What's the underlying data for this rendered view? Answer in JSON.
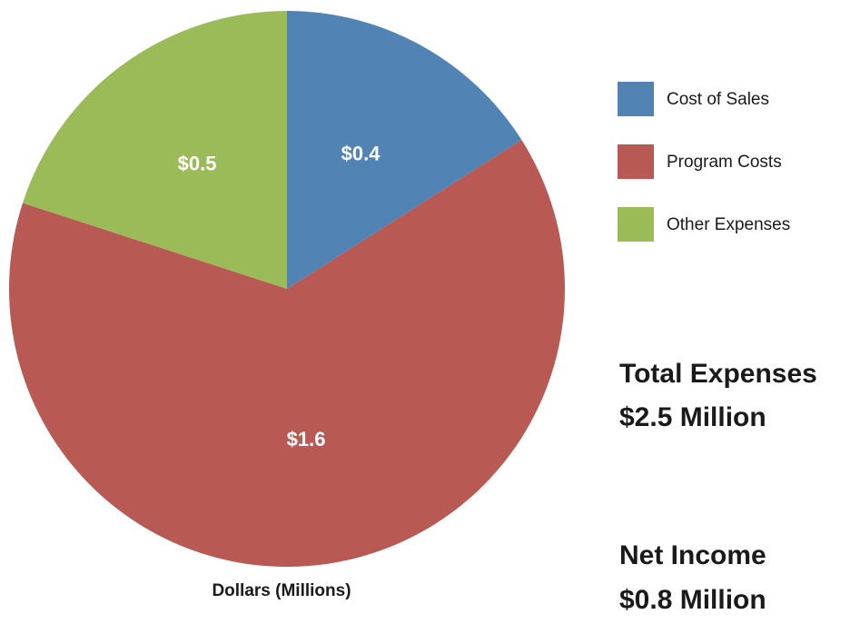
{
  "chart_data": {
    "type": "pie",
    "categories": [
      "Cost of Sales",
      "Program Costs",
      "Other Expenses"
    ],
    "values": [
      0.4,
      1.6,
      0.5
    ],
    "value_labels": [
      "$0.4",
      "$1.6",
      "$0.5"
    ],
    "colors": [
      "#5283b5",
      "#b85a53",
      "#9bbb59"
    ],
    "legend": "right",
    "axis_label": "Dollars (Millions)",
    "annotations": [
      "Total Expenses",
      "$2.5 Million",
      "Net Income",
      "$0.8 Million"
    ]
  }
}
